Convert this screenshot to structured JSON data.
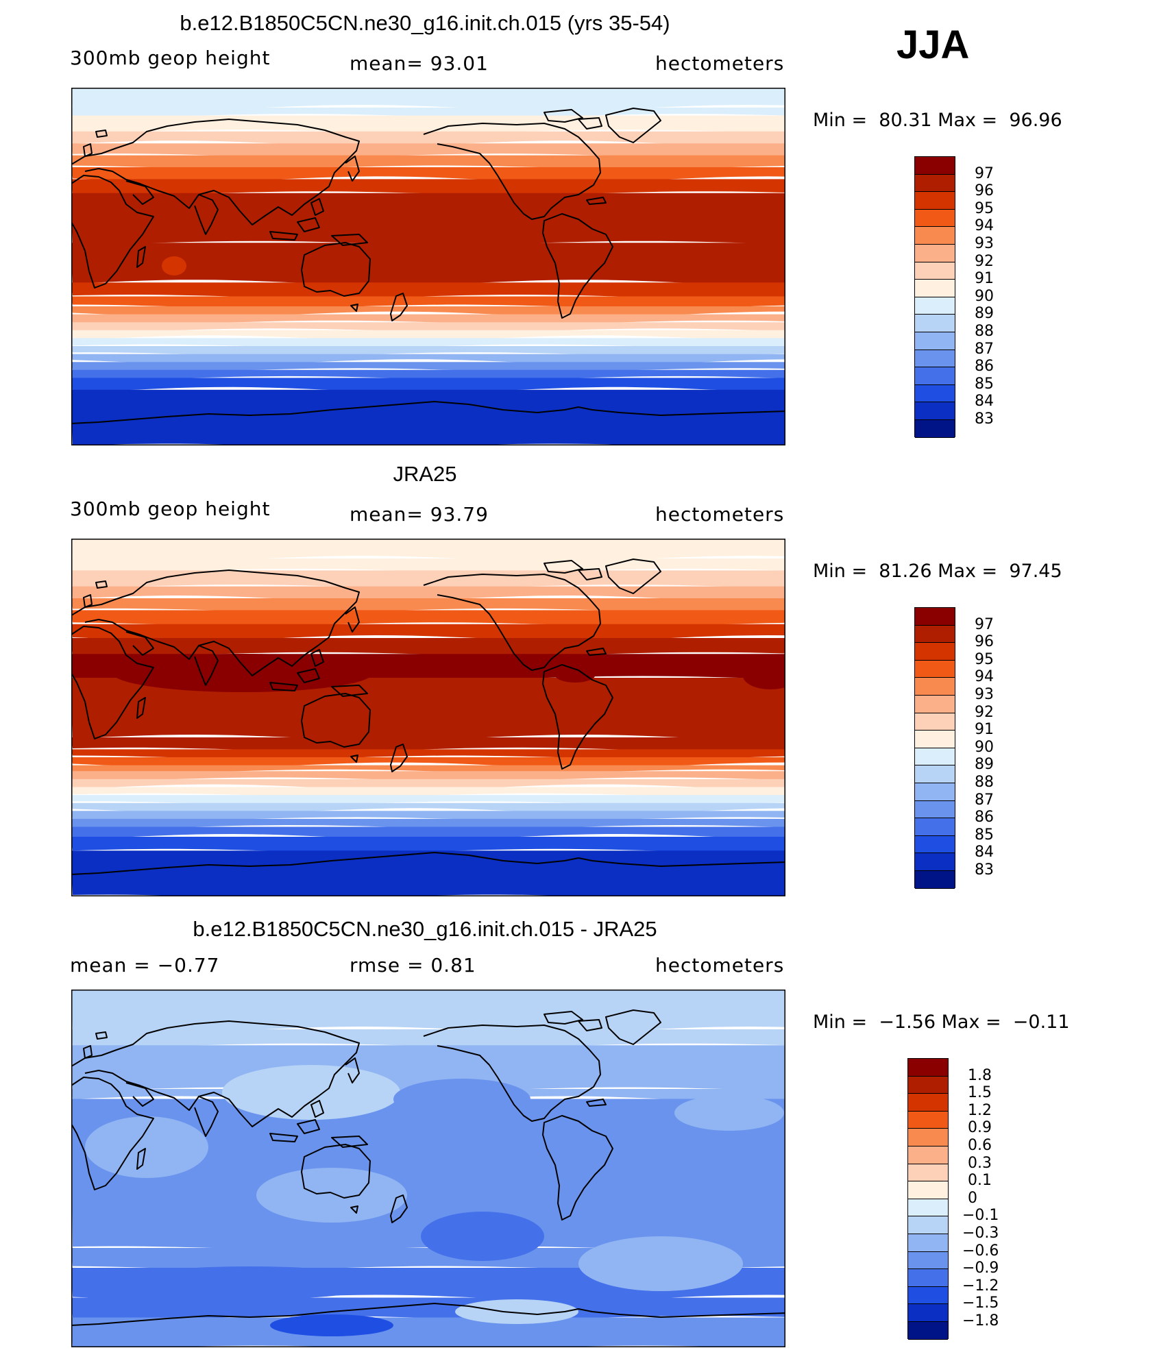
{
  "season": "JJA",
  "panels": [
    {
      "title": "b.e12.B1850C5CN.ne30_g16.init.ch.015 (yrs 35-54)",
      "left_text": "300mb geop height",
      "center_text": "mean=  93.01",
      "right_text": "hectometers",
      "min_max": "Min =  80.31 Max =  96.96"
    },
    {
      "title": "JRA25",
      "left_text": "300mb geop height",
      "center_text": "mean=  93.79",
      "right_text": "hectometers",
      "min_max": "Min =  81.26 Max =  97.45"
    },
    {
      "title": "b.e12.B1850C5CN.ne30_g16.init.ch.015 - JRA25",
      "left_text": "mean =  −0.77",
      "center_text": "rmse =   0.81",
      "right_text": "hectometers",
      "min_max": "Min =  −1.56 Max =  −0.11"
    }
  ],
  "colorbars": {
    "height": {
      "labels": [
        "97",
        "96",
        "95",
        "94",
        "93",
        "92",
        "91",
        "90",
        "89",
        "88",
        "87",
        "86",
        "85",
        "84",
        "83"
      ],
      "colors": [
        "#8a0000",
        "#b01e00",
        "#d43400",
        "#f05a16",
        "#f88a50",
        "#fbb08a",
        "#fdd0b8",
        "#fff0e0",
        "#dbeefc",
        "#b7d4f7",
        "#91b5f2",
        "#6a93ee",
        "#4470ea",
        "#1f4fe2",
        "#0a2fc2",
        "#001488"
      ]
    },
    "difference": {
      "labels": [
        "1.8",
        "1.5",
        "1.2",
        "0.9",
        "0.6",
        "0.3",
        "0.1",
        "0",
        "−0.1",
        "−0.3",
        "−0.6",
        "−0.9",
        "−1.2",
        "−1.5",
        "−1.8"
      ],
      "colors": [
        "#8a0000",
        "#b01e00",
        "#d43400",
        "#f05a16",
        "#f88a50",
        "#fbb08a",
        "#fdd0b8",
        "#fff0e0",
        "#dbeefc",
        "#b7d4f7",
        "#91b5f2",
        "#6a93ee",
        "#4470ea",
        "#1f4fe2",
        "#0a2fc2",
        "#001488"
      ]
    }
  },
  "maps": {
    "model_height": {
      "bands": [
        {
          "lat": 90,
          "level": 89
        },
        {
          "lat": 80,
          "level": 89
        },
        {
          "lat": 76,
          "level": 90
        },
        {
          "lat": 68,
          "level": 91
        },
        {
          "lat": 62,
          "level": 92
        },
        {
          "lat": 56,
          "level": 93
        },
        {
          "lat": 50,
          "level": 94
        },
        {
          "lat": 44,
          "level": 95
        },
        {
          "lat": 37,
          "level": 96
        },
        {
          "lat": 12,
          "level": 96
        },
        {
          "lat": -8,
          "level": 95
        },
        {
          "lat": -15,
          "level": 94
        },
        {
          "lat": -20,
          "level": 93
        },
        {
          "lat": -24,
          "level": 92
        },
        {
          "lat": -28,
          "level": 91
        },
        {
          "lat": -32,
          "level": 90
        },
        {
          "lat": -36,
          "level": 89
        },
        {
          "lat": -40,
          "level": 88
        },
        {
          "lat": -44,
          "level": 87
        },
        {
          "lat": -48,
          "level": 86
        },
        {
          "lat": -52,
          "level": 85
        },
        {
          "lat": -56,
          "level": 84
        },
        {
          "lat": -62,
          "level": 83
        },
        {
          "lat": -90,
          "level": 83
        }
      ]
    },
    "obs_height": {
      "bands": [
        {
          "lat": 90,
          "level": 90
        },
        {
          "lat": 80,
          "level": 90
        },
        {
          "lat": 74,
          "level": 91
        },
        {
          "lat": 66,
          "level": 92
        },
        {
          "lat": 60,
          "level": 93
        },
        {
          "lat": 54,
          "level": 94
        },
        {
          "lat": 47,
          "level": 95
        },
        {
          "lat": 40,
          "level": 96
        },
        {
          "lat": 32,
          "level": 97
        },
        {
          "lat": 20,
          "level": 96
        },
        {
          "lat": -10,
          "level": 96
        },
        {
          "lat": -16,
          "level": 95
        },
        {
          "lat": -20,
          "level": 94
        },
        {
          "lat": -24,
          "level": 93
        },
        {
          "lat": -27,
          "level": 92
        },
        {
          "lat": -31,
          "level": 91
        },
        {
          "lat": -35,
          "level": 90
        },
        {
          "lat": -39,
          "level": 89
        },
        {
          "lat": -43,
          "level": 88
        },
        {
          "lat": -47,
          "level": 87
        },
        {
          "lat": -51,
          "level": 86
        },
        {
          "lat": -55,
          "level": 85
        },
        {
          "lat": -60,
          "level": 84
        },
        {
          "lat": -67,
          "level": 83
        },
        {
          "lat": -90,
          "level": 83
        }
      ]
    },
    "difference": {
      "bands": [
        {
          "lat": 90,
          "level": -0.3
        },
        {
          "lat": 70,
          "level": -0.3
        },
        {
          "lat": 62,
          "level": -0.6
        },
        {
          "lat": 40,
          "level": -0.6
        },
        {
          "lat": 35,
          "level": -0.9
        },
        {
          "lat": -40,
          "level": -0.9
        },
        {
          "lat": -50,
          "level": -1.2
        },
        {
          "lat": -65,
          "level": -1.2
        },
        {
          "lat": -75,
          "level": -0.9
        },
        {
          "lat": -90,
          "level": -0.9
        }
      ]
    }
  }
}
